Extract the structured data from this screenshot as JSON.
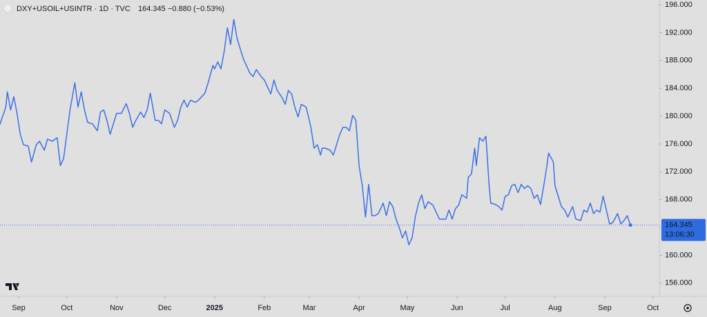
{
  "chart_data": {
    "type": "line",
    "header": {
      "price": "164.345",
      "change": "−0.880 (−0.53%)"
    },
    "last_price_label": "164.345",
    "countdown": "13:06:30",
    "grid": false,
    "xlim": [
      -11.6,
      399
    ],
    "ylim": [
      154.1,
      196.7
    ],
    "xticks": [
      {
        "value": 0,
        "label": "Sep"
      },
      {
        "value": 30,
        "label": "Oct"
      },
      {
        "value": 61,
        "label": "Nov"
      },
      {
        "value": 91,
        "label": "Dec"
      },
      {
        "value": 122,
        "label": "2025"
      },
      {
        "value": 153,
        "label": "Feb"
      },
      {
        "value": 181,
        "label": "Mar"
      },
      {
        "value": 212,
        "label": "Apr"
      },
      {
        "value": 242,
        "label": "May"
      },
      {
        "value": 273,
        "label": "Jun"
      },
      {
        "value": 303,
        "label": "Jul"
      },
      {
        "value": 334,
        "label": "Aug"
      },
      {
        "value": 365,
        "label": "Sep"
      },
      {
        "value": 395,
        "label": "Oct"
      }
    ],
    "yticks": [
      {
        "value": 156,
        "label": "156.000"
      },
      {
        "value": 160,
        "label": "160.000"
      },
      {
        "value": 164,
        "label": "164.000"
      },
      {
        "value": 168,
        "label": "168.000"
      },
      {
        "value": 172,
        "label": "172.000"
      },
      {
        "value": 176,
        "label": "176.000"
      },
      {
        "value": 180,
        "label": "180.000"
      },
      {
        "value": 184,
        "label": "184.000"
      },
      {
        "value": 188,
        "label": "188.000"
      },
      {
        "value": 192,
        "label": "192.000"
      },
      {
        "value": 196,
        "label": "196.000"
      }
    ],
    "x": [
      -12,
      -8,
      -7,
      -5,
      -3,
      -1,
      1,
      3,
      6,
      8,
      11,
      13,
      16,
      18,
      21,
      24,
      26,
      28,
      30,
      32,
      35,
      37,
      39,
      41,
      43,
      46,
      49,
      51,
      53,
      55,
      57,
      59,
      61,
      64,
      67,
      69,
      71,
      73,
      76,
      78,
      80,
      82,
      85,
      87,
      89,
      91,
      94,
      97,
      99,
      101,
      103,
      105,
      107,
      110,
      112,
      114,
      116,
      118,
      121,
      122,
      124,
      126,
      128,
      130,
      132,
      134,
      136,
      138,
      140,
      142,
      144,
      146,
      148,
      151,
      153,
      155,
      157,
      159,
      161,
      164,
      166,
      168,
      170,
      172,
      174,
      176,
      179,
      181,
      182,
      184,
      186,
      188,
      189,
      191,
      194,
      196,
      198,
      200,
      202,
      204,
      206,
      208,
      210,
      212,
      214,
      216,
      218,
      220,
      222,
      224,
      227,
      229,
      231,
      233,
      235,
      237,
      239,
      241,
      243,
      245,
      247,
      249,
      251,
      253,
      255,
      258,
      260,
      262,
      264,
      266,
      268,
      270,
      272,
      274,
      276,
      279,
      280,
      282,
      284,
      285,
      287,
      289,
      291,
      293,
      294,
      297,
      299,
      301,
      303,
      305,
      307,
      309,
      311,
      313,
      315,
      317,
      319,
      321,
      323,
      325,
      327,
      329,
      330,
      333,
      334,
      336,
      338,
      340,
      342,
      345,
      347,
      350,
      352,
      354,
      356,
      358,
      360,
      362,
      364,
      366,
      368,
      370,
      373,
      375,
      377,
      379,
      381
    ],
    "series": [
      {
        "name": "DXY+USOIL+USINTR · 1D · TVC",
        "color": "#3a6fe6",
        "values": [
          178.6,
          181.3,
          183.5,
          180.9,
          182.8,
          180.4,
          177.4,
          175.9,
          175.7,
          173.4,
          175.9,
          176.4,
          175.1,
          176.7,
          176.4,
          176.9,
          172.9,
          173.9,
          177.4,
          180.9,
          184.8,
          181.3,
          183.5,
          180.9,
          179.1,
          178.9,
          177.9,
          180.6,
          180.9,
          179.4,
          177.4,
          178.9,
          180.4,
          180.4,
          181.8,
          180.4,
          178.4,
          179.4,
          180.6,
          179.8,
          180.9,
          183.3,
          179.4,
          179.4,
          178.9,
          180.9,
          180.4,
          178.4,
          179.4,
          181.3,
          182.3,
          181.3,
          182.3,
          182.0,
          182.3,
          182.8,
          183.3,
          184.8,
          187.3,
          186.8,
          187.8,
          186.8,
          189.3,
          192.7,
          190.3,
          193.9,
          191.2,
          189.7,
          188.2,
          187.2,
          186.2,
          185.7,
          186.7,
          185.7,
          185.2,
          184.2,
          183.2,
          185.2,
          183.7,
          182.7,
          181.7,
          183.7,
          183.2,
          181.3,
          179.9,
          181.7,
          181.3,
          179.4,
          178.4,
          175.4,
          175.9,
          174.4,
          175.4,
          175.4,
          175.1,
          174.4,
          175.9,
          177.4,
          178.4,
          178.4,
          177.9,
          180.1,
          179.4,
          172.9,
          170.0,
          165.5,
          170.2,
          165.7,
          165.7,
          166.0,
          167.5,
          165.7,
          167.7,
          167.0,
          165.2,
          164.0,
          162.5,
          163.5,
          161.5,
          162.5,
          165.5,
          167.5,
          168.7,
          166.7,
          167.7,
          167.2,
          166.2,
          165.2,
          165.2,
          165.2,
          166.5,
          165.2,
          166.7,
          167.2,
          168.7,
          168.2,
          171.2,
          171.7,
          175.4,
          172.9,
          176.9,
          176.4,
          177.1,
          170.0,
          167.5,
          167.3,
          167.0,
          166.5,
          168.5,
          168.7,
          170.0,
          170.2,
          169.0,
          170.2,
          169.6,
          170.0,
          169.6,
          168.2,
          168.7,
          167.3,
          170.0,
          172.9,
          174.7,
          173.4,
          170.0,
          168.5,
          167.0,
          166.5,
          165.5,
          167.0,
          165.2,
          165.0,
          166.5,
          166.2,
          167.5,
          166.0,
          166.5,
          166.2,
          168.5,
          166.5,
          164.5,
          164.7,
          166.0,
          164.5,
          165.0,
          165.7,
          164.345
        ]
      }
    ]
  }
}
